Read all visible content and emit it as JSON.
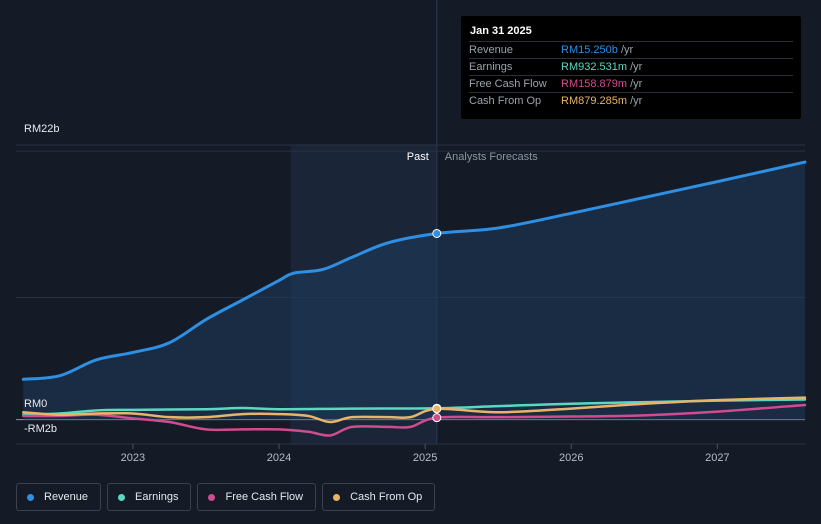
{
  "chart_data": {
    "type": "line",
    "y_tick_labels": [
      "RM22b",
      "RM0",
      "-RM2b"
    ],
    "y_ticks": [
      22,
      0,
      -2
    ],
    "ylim": [
      -2,
      22.5
    ],
    "x_tick_labels": [
      "2023",
      "2024",
      "2025",
      "2026",
      "2027"
    ],
    "x_ticks": [
      2023,
      2024,
      2025,
      2026,
      2027
    ],
    "xlim": [
      2022.2,
      2027.6
    ],
    "past_label": "Past",
    "forecast_label": "Analysts Forecasts",
    "divider_x": 2025.08,
    "past_shade_start": 2024.08,
    "series": [
      {
        "name": "Revenue",
        "color": "#2e8fe3",
        "x": [
          2022.25,
          2022.5,
          2022.75,
          2023.0,
          2023.25,
          2023.5,
          2023.75,
          2024.0,
          2024.1,
          2024.3,
          2024.5,
          2024.75,
          2025.08,
          2025.5,
          2026.0,
          2026.5,
          2027.0,
          2027.6
        ],
        "y": [
          3.3,
          3.6,
          4.9,
          5.5,
          6.3,
          8.2,
          9.8,
          11.4,
          12.0,
          12.3,
          13.3,
          14.5,
          15.25,
          15.7,
          16.9,
          18.2,
          19.5,
          21.1
        ]
      },
      {
        "name": "Earnings",
        "color": "#5ad8c2",
        "x": [
          2022.25,
          2022.5,
          2022.75,
          2023.0,
          2023.5,
          2023.75,
          2024.0,
          2024.5,
          2025.08,
          2025.5,
          2026.0,
          2027.0,
          2027.6
        ],
        "y": [
          0.4,
          0.5,
          0.75,
          0.8,
          0.85,
          0.95,
          0.85,
          0.9,
          0.93,
          1.1,
          1.3,
          1.55,
          1.65
        ]
      },
      {
        "name": "Free Cash Flow",
        "color": "#d14c8f",
        "x": [
          2022.25,
          2022.5,
          2022.75,
          2023.0,
          2023.25,
          2023.5,
          2023.75,
          2024.0,
          2024.2,
          2024.35,
          2024.5,
          2024.75,
          2024.9,
          2025.08,
          2025.5,
          2026.0,
          2026.5,
          2027.0,
          2027.6
        ],
        "y": [
          0.3,
          0.3,
          0.4,
          0.1,
          -0.2,
          -0.8,
          -0.8,
          -0.8,
          -1.0,
          -1.3,
          -0.6,
          -0.6,
          -0.6,
          0.16,
          0.2,
          0.25,
          0.35,
          0.65,
          1.2
        ]
      },
      {
        "name": "Cash From Op",
        "color": "#e9b468",
        "x": [
          2022.25,
          2022.5,
          2022.75,
          2023.0,
          2023.25,
          2023.5,
          2023.75,
          2024.0,
          2024.2,
          2024.35,
          2024.5,
          2024.75,
          2024.9,
          2025.08,
          2025.5,
          2026.0,
          2026.5,
          2027.0,
          2027.6
        ],
        "y": [
          0.6,
          0.4,
          0.5,
          0.5,
          0.2,
          0.2,
          0.45,
          0.45,
          0.3,
          -0.2,
          0.2,
          0.2,
          0.2,
          0.88,
          0.6,
          0.9,
          1.3,
          1.6,
          1.8
        ]
      }
    ]
  },
  "tooltip": {
    "date": "Jan 31 2025",
    "rows": [
      {
        "label": "Revenue",
        "value": "RM15.250b",
        "unit": "/yr",
        "color": "#2e8fe3"
      },
      {
        "label": "Earnings",
        "value": "RM932.531m",
        "unit": "/yr",
        "color": "#5ad8c2"
      },
      {
        "label": "Free Cash Flow",
        "value": "RM158.879m",
        "unit": "/yr",
        "color": "#d14c8f"
      },
      {
        "label": "Cash From Op",
        "value": "RM879.285m",
        "unit": "/yr",
        "color": "#e9b468"
      }
    ]
  },
  "legend": [
    {
      "label": "Revenue",
      "color": "#2e8fe3"
    },
    {
      "label": "Earnings",
      "color": "#5ad8c2"
    },
    {
      "label": "Free Cash Flow",
      "color": "#d14c8f"
    },
    {
      "label": "Cash From Op",
      "color": "#e9b468"
    }
  ]
}
